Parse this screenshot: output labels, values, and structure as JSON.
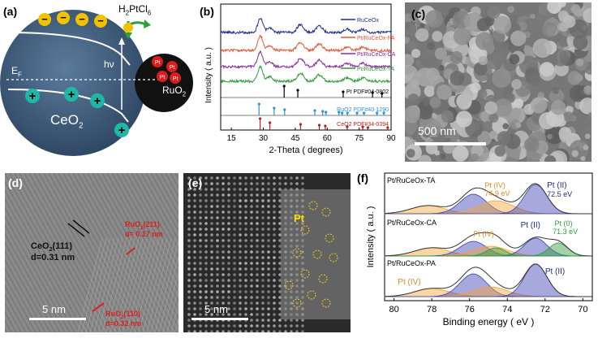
{
  "panels": {
    "a": {
      "label": "(a)",
      "precursor": "H2PtCl6",
      "hv": "hν",
      "ef": "EF",
      "ceo2": "CeO2",
      "ruo2": "RuO2",
      "pt": "Pt",
      "minus": "−",
      "plus": "+",
      "colors": {
        "sphere": "#3d5a78",
        "ruo2": "#111111",
        "electron": "#f2c200",
        "hole": "#1fb7a6",
        "pt": "#e01b1b",
        "arrow": "#2e9e3e"
      }
    },
    "b": {
      "label": "(b)",
      "ylabel": "Intensity ( a.u. )",
      "xlabel": "2-Theta ( degrees)",
      "xticks": [
        "15",
        "30",
        "45",
        "60",
        "75",
        "90"
      ],
      "legend": [
        "RuCeOx",
        "Pt/RuCeOx-PA",
        "Pt/RuCeOx-CA",
        "Pt/RuCeOx-TA"
      ],
      "colors": [
        "#1f2b8f",
        "#e0593a",
        "#8a2c9c",
        "#2f9d3a"
      ],
      "ref_labels": [
        "Pt  PDF#04-0802",
        "RuO2 PDF#40-1290",
        "CeO2 PDF#34-0394"
      ],
      "ref_colors": [
        "#000000",
        "#2f93d1",
        "#b22222"
      ]
    },
    "c": {
      "label": "(c)",
      "scale": "500 nm"
    },
    "d": {
      "label": "(d)",
      "ceo2": "CeO2(111)",
      "ceo2_d": "d=0.31 nm",
      "ruo2a": "RuO2(211)",
      "ruo2a_d": "d= 0.17 nm",
      "ruo2b": "RuO2(110)",
      "ruo2b_d": "d=0.32 nm",
      "scale": "5 nm"
    },
    "e": {
      "label": "(e)",
      "pt": "Pt",
      "scale": "5 nm"
    },
    "f": {
      "label": "(f)",
      "ylabel": "Intensity ( a.u. )",
      "xlabel": "Binding energy ( eV )",
      "xticks": [
        "80",
        "78",
        "76",
        "74",
        "72",
        "70"
      ],
      "samples": [
        "Pt/RuCeOx-TA",
        "Pt/RuCeOx-CA",
        "Pt/RuCeOx-PA"
      ],
      "ta_ptiv": "Pt (IV)",
      "ta_ptiv_val": "74.9 eV",
      "ta_ptii": "Pt (II)",
      "ta_ptii_val": "72.5 eV",
      "ca_ptiv": "Pt (IV)",
      "ca_ptii": "Pt (II)",
      "ca_pt0": "Pt (0)",
      "ca_pt0_val": "71.3 eV",
      "pa_ptiv": "Pt (IV)",
      "pa_ptii": "Pt (II)"
    }
  },
  "chart_data": [
    {
      "type": "line",
      "title": "",
      "xlabel": "2-Theta ( degrees)",
      "ylabel": "Intensity ( a.u. )",
      "xlim": [
        10,
        90
      ],
      "series": [
        {
          "name": "RuCeOx",
          "peaks_2theta": [
            28.6,
            33.1,
            47.5,
            56.3,
            69.4,
            76.7
          ]
        },
        {
          "name": "Pt/RuCeOx-PA",
          "peaks_2theta": [
            28.6,
            33.1,
            47.5,
            56.3,
            69.4,
            76.7
          ]
        },
        {
          "name": "Pt/RuCeOx-CA",
          "peaks_2theta": [
            28.6,
            33.1,
            47.5,
            56.3,
            69.4,
            76.7
          ]
        },
        {
          "name": "Pt/RuCeOx-TA",
          "peaks_2theta": [
            28.6,
            33.1,
            47.5,
            56.3,
            69.4,
            76.7
          ]
        }
      ],
      "references": [
        {
          "name": "Pt PDF#04-0802",
          "positions": [
            39.8,
            46.2,
            67.5,
            81.3,
            85.7
          ]
        },
        {
          "name": "RuO2 PDF#40-1290",
          "positions": [
            28.0,
            35.1,
            40.0,
            54.2,
            57.9,
            59.4,
            65.5,
            67.0,
            69.5,
            74.0,
            77.3,
            83.4,
            86.6
          ]
        },
        {
          "name": "CeO2 PDF#34-0394",
          "positions": [
            28.5,
            33.1,
            47.5,
            56.3,
            59.1,
            69.4,
            76.7,
            79.1,
            88.4
          ]
        }
      ]
    },
    {
      "type": "area",
      "title": "",
      "xlabel": "Binding energy ( eV )",
      "ylabel": "Intensity ( a.u. )",
      "xlim": [
        80.5,
        69.5
      ],
      "series": [
        {
          "name": "Pt/RuCeOx-TA",
          "peaks_eV": {
            "Pt (IV)": 74.9,
            "Pt (II)": 72.5
          }
        },
        {
          "name": "Pt/RuCeOx-CA",
          "peaks_eV": {
            "Pt (0)": 71.3
          }
        },
        {
          "name": "Pt/RuCeOx-PA",
          "peaks_eV": {}
        }
      ]
    }
  ]
}
